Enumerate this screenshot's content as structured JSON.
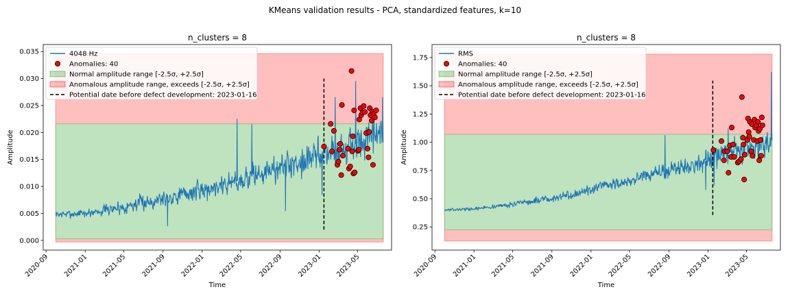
{
  "figure": {
    "suptitle": "KMeans validation results - PCA, standardized features, k=10"
  },
  "chart_data": [
    {
      "type": "line",
      "title": "n_clusters = 8",
      "xlabel": "Time",
      "ylabel": "Amplitude",
      "xlim": [
        "2020-08-23",
        "2023-08-15"
      ],
      "ylim": [
        -0.0018,
        0.0363
      ],
      "xticks": [
        "2020-09",
        "2021-01",
        "2021-05",
        "2021-09",
        "2022-01",
        "2022-05",
        "2022-09",
        "2023-01",
        "2023-05"
      ],
      "yticks": [
        "0.000",
        "0.005",
        "0.010",
        "0.015",
        "0.020",
        "0.025",
        "0.030",
        "0.035"
      ],
      "legend_position": "upper left",
      "series": [
        {
          "name": "4048 Hz",
          "color": "#1f77b4",
          "start": "2020-10-01",
          "end": "2023-07-20",
          "trend": [
            [
              "2020-10-01",
              0.0048
            ],
            [
              "2021-01-01",
              0.005
            ],
            [
              "2021-05-01",
              0.0062
            ],
            [
              "2021-09-01",
              0.0078
            ],
            [
              "2022-01-01",
              0.0093
            ],
            [
              "2022-05-01",
              0.0112
            ],
            [
              "2022-09-01",
              0.0135
            ],
            [
              "2023-01-01",
              0.0158
            ],
            [
              "2023-03-01",
              0.0168
            ],
            [
              "2023-05-01",
              0.018
            ],
            [
              "2023-07-20",
              0.0195
            ]
          ],
          "noise": [
            [
              "2020-10-01",
              0.0007
            ],
            [
              "2021-09-01",
              0.0018
            ],
            [
              "2022-05-01",
              0.0025
            ],
            [
              "2022-09-01",
              0.0028
            ],
            [
              "2023-01-01",
              0.0033
            ],
            [
              "2023-07-20",
              0.004
            ]
          ],
          "spikes": [
            [
              "2021-09-15",
              0.0027
            ],
            [
              "2022-04-20",
              0.0225
            ],
            [
              "2022-06-05",
              0.0215
            ],
            [
              "2022-09-18",
              0.0055
            ],
            [
              "2023-01-10",
              0.0085
            ],
            [
              "2023-02-20",
              0.0265
            ],
            [
              "2023-04-25",
              0.0295
            ],
            [
              "2023-07-18",
              0.0265
            ]
          ]
        }
      ],
      "anomalies": {
        "name": "Anomalies: 40",
        "color": "#ff0000",
        "points": [
          [
            "2023-01-16",
            0.0174
          ],
          [
            "2023-02-06",
            0.0216
          ],
          [
            "2023-02-10",
            0.0165
          ],
          [
            "2023-02-16",
            0.0203
          ],
          [
            "2023-02-27",
            0.014
          ],
          [
            "2023-03-02",
            0.0146
          ],
          [
            "2023-03-06",
            0.0168
          ],
          [
            "2023-03-08",
            0.0179
          ],
          [
            "2023-03-11",
            0.0121
          ],
          [
            "2023-03-13",
            0.0251
          ],
          [
            "2023-03-16",
            0.0157
          ],
          [
            "2023-04-01",
            0.017
          ],
          [
            "2023-04-04",
            0.0133
          ],
          [
            "2023-04-08",
            0.0137
          ],
          [
            "2023-04-12",
            0.0314
          ],
          [
            "2023-04-14",
            0.0165
          ],
          [
            "2023-04-16",
            0.0193
          ],
          [
            "2023-04-18",
            0.0124
          ],
          [
            "2023-04-20",
            0.0241
          ],
          [
            "2023-04-22",
            0.0126
          ],
          [
            "2023-05-02",
            0.0166
          ],
          [
            "2023-05-05",
            0.0168
          ],
          [
            "2023-05-06",
            0.0224
          ],
          [
            "2023-05-10",
            0.0245
          ],
          [
            "2023-05-12",
            0.0232
          ],
          [
            "2023-05-16",
            0.0237
          ],
          [
            "2023-05-20",
            0.0249
          ],
          [
            "2023-05-24",
            0.0238
          ],
          [
            "2023-05-28",
            0.0199
          ],
          [
            "2023-06-01",
            0.017
          ],
          [
            "2023-06-04",
            0.0154
          ],
          [
            "2023-06-06",
            0.0201
          ],
          [
            "2023-06-08",
            0.0245
          ],
          [
            "2023-06-10",
            0.0232
          ],
          [
            "2023-06-14",
            0.0222
          ],
          [
            "2023-06-16",
            0.0239
          ],
          [
            "2023-06-18",
            0.014
          ],
          [
            "2023-06-20",
            0.0234
          ],
          [
            "2023-06-24",
            0.0228
          ],
          [
            "2023-06-28",
            0.0241
          ]
        ]
      },
      "normal_range": {
        "name": "Normal amplitude range [-2.5σ, +2.5σ]",
        "low": 0.0003,
        "high": 0.0216,
        "color": "#2ca02c"
      },
      "anomalous_range": {
        "name": "Anomalous amplitude range, exceeds [-2.5σ, +2.5σ]",
        "low": -0.0003,
        "high": 0.0346,
        "color": "#ff0000"
      },
      "defect_line": {
        "name": "Potential date before defect development: 2023-01-16",
        "date": "2023-01-16",
        "ymin": 0.002,
        "ymax": 0.03
      },
      "band_start": "2020-10-01",
      "band_end": "2023-07-20",
      "seed": 7
    },
    {
      "type": "line",
      "title": "n_clusters = 8",
      "xlabel": "Time",
      "ylabel": "Amplitude",
      "xlim": [
        "2020-08-23",
        "2023-08-15"
      ],
      "ylim": [
        0.045,
        1.865
      ],
      "xticks": [
        "2020-09",
        "2021-01",
        "2021-05",
        "2021-09",
        "2022-01",
        "2022-05",
        "2022-09",
        "2023-01",
        "2023-05"
      ],
      "yticks": [
        "0.25",
        "0.50",
        "0.75",
        "1.00",
        "1.25",
        "1.50",
        "1.75"
      ],
      "legend_position": "upper left",
      "series": [
        {
          "name": "RMS",
          "color": "#1f77b4",
          "start": "2020-10-01",
          "end": "2023-07-20",
          "trend": [
            [
              "2020-10-01",
              0.4
            ],
            [
              "2021-01-01",
              0.41
            ],
            [
              "2021-05-01",
              0.45
            ],
            [
              "2021-09-01",
              0.5
            ],
            [
              "2022-01-01",
              0.58
            ],
            [
              "2022-05-01",
              0.66
            ],
            [
              "2022-09-01",
              0.75
            ],
            [
              "2023-01-01",
              0.84
            ],
            [
              "2023-03-01",
              0.9
            ],
            [
              "2023-05-01",
              0.96
            ],
            [
              "2023-07-20",
              1.02
            ]
          ],
          "noise": [
            [
              "2020-10-01",
              0.012
            ],
            [
              "2021-03-01",
              0.02
            ],
            [
              "2021-09-01",
              0.04
            ],
            [
              "2022-05-01",
              0.06
            ],
            [
              "2022-09-01",
              0.08
            ],
            [
              "2023-01-01",
              0.11
            ],
            [
              "2023-07-20",
              0.15
            ]
          ],
          "spikes": [
            [
              "2022-08-20",
              1.06
            ],
            [
              "2022-12-25",
              0.58
            ],
            [
              "2023-01-20",
              0.62
            ],
            [
              "2023-03-05",
              1.12
            ],
            [
              "2023-07-18",
              1.62
            ]
          ]
        }
      ],
      "anomalies": {
        "name": "Anomalies: 40",
        "color": "#ff0000",
        "points": [
          [
            "2023-01-18",
            0.93
          ],
          [
            "2023-02-12",
            1.01
          ],
          [
            "2023-02-20",
            0.84
          ],
          [
            "2023-02-22",
            0.92
          ],
          [
            "2023-03-02",
            0.92
          ],
          [
            "2023-03-06",
            0.73
          ],
          [
            "2023-03-10",
            0.97
          ],
          [
            "2023-03-14",
            0.87
          ],
          [
            "2023-03-16",
            1.13
          ],
          [
            "2023-03-20",
            0.98
          ],
          [
            "2023-03-24",
            0.87
          ],
          [
            "2023-04-04",
            0.82
          ],
          [
            "2023-04-08",
            0.83
          ],
          [
            "2023-04-14",
            0.85
          ],
          [
            "2023-04-17",
            1.4
          ],
          [
            "2023-04-20",
            1.04
          ],
          [
            "2023-04-22",
            0.98
          ],
          [
            "2023-04-24",
            0.67
          ],
          [
            "2023-04-26",
            0.89
          ],
          [
            "2023-05-04",
            1.02
          ],
          [
            "2023-05-06",
            1.21
          ],
          [
            "2023-05-08",
            1.09
          ],
          [
            "2023-05-10",
            1.05
          ],
          [
            "2023-05-12",
            1.18
          ],
          [
            "2023-05-16",
            0.92
          ],
          [
            "2023-05-18",
            1.16
          ],
          [
            "2023-05-20",
            0.88
          ],
          [
            "2023-05-24",
            1.02
          ],
          [
            "2023-05-26",
            1.2
          ],
          [
            "2023-05-28",
            1.13
          ],
          [
            "2023-06-01",
            1.15
          ],
          [
            "2023-06-04",
            1.01
          ],
          [
            "2023-06-06",
            1.18
          ],
          [
            "2023-06-08",
            1.1
          ],
          [
            "2023-06-10",
            0.84
          ],
          [
            "2023-06-12",
            1.12
          ],
          [
            "2023-06-14",
            1.02
          ],
          [
            "2023-06-16",
            0.88
          ],
          [
            "2023-06-18",
            1.22
          ],
          [
            "2023-06-20",
            1.15
          ]
        ]
      },
      "normal_range": {
        "name": "Normal amplitude range [-2.5σ, +2.5σ]",
        "low": 0.225,
        "high": 1.07,
        "color": "#2ca02c"
      },
      "anomalous_range": {
        "name": "Anomalous amplitude range, exceeds [-2.5σ, +2.5σ]",
        "low": 0.125,
        "high": 1.78,
        "color": "#ff0000"
      },
      "defect_line": {
        "name": "Potential date before defect development: 2023-01-16",
        "date": "2023-01-16",
        "ymin": 0.355,
        "ymax": 1.545
      },
      "band_start": "2020-10-01",
      "band_end": "2023-07-20",
      "seed": 13
    }
  ]
}
